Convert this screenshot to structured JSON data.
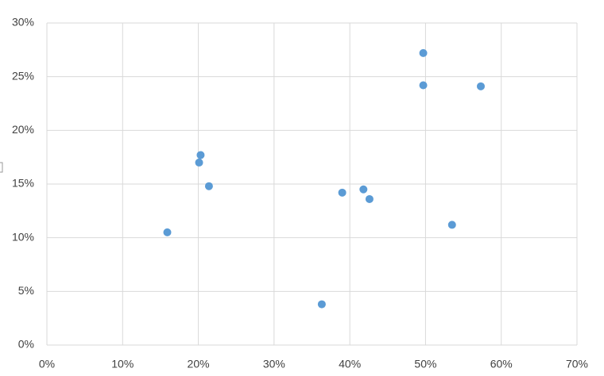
{
  "chart_data": {
    "type": "scatter",
    "x": [
      15.9,
      20.3,
      20.1,
      21.4,
      36.3,
      39.0,
      41.8,
      42.6,
      49.7,
      49.7,
      53.5,
      57.3
    ],
    "values": [
      10.5,
      17.7,
      17.0,
      14.8,
      3.8,
      14.2,
      14.5,
      13.6,
      27.2,
      24.2,
      11.2,
      24.1
    ],
    "color": "#5b9bd5",
    "xlim": [
      0,
      70
    ],
    "xticks": [
      {
        "value": 0,
        "label": "0%"
      },
      {
        "value": 10,
        "label": "10%"
      },
      {
        "value": 20,
        "label": "20%"
      },
      {
        "value": 30,
        "label": "30%"
      },
      {
        "value": 40,
        "label": "40%"
      },
      {
        "value": 50,
        "label": "50%"
      },
      {
        "value": 60,
        "label": "60%"
      },
      {
        "value": 70,
        "label": "70%"
      }
    ],
    "ylim": [
      0,
      30
    ],
    "yticks": [
      {
        "value": 0,
        "label": "0%"
      },
      {
        "value": 5,
        "label": "5%"
      },
      {
        "value": 10,
        "label": "10%"
      },
      {
        "value": 15,
        "label": "15%"
      },
      {
        "value": 20,
        "label": "20%"
      },
      {
        "value": 25,
        "label": "25%"
      },
      {
        "value": 30,
        "label": "30%"
      }
    ],
    "grid": true
  }
}
